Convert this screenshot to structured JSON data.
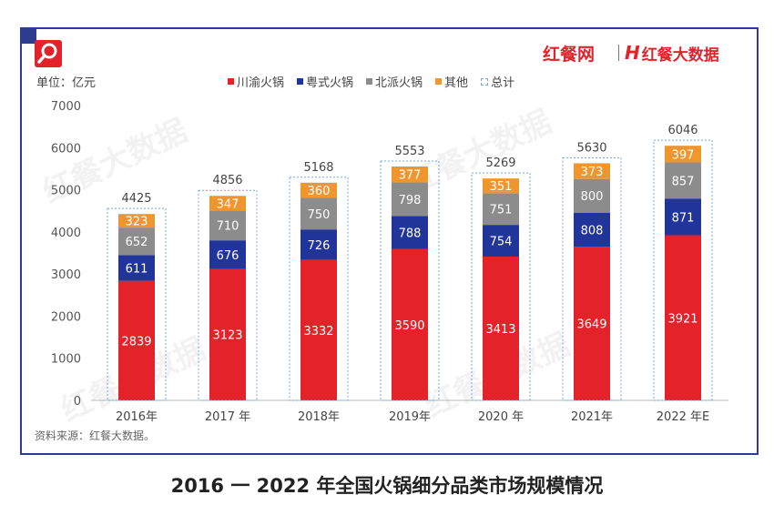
{
  "brand": {
    "primary": "红餐网",
    "secondary": "红餐大数据",
    "secondary_mark": "H"
  },
  "unit_label": "单位：亿元",
  "source": "资料来源：红餐大数据。",
  "caption": "2016 一 2022 年全国火锅细分品类市场规模情况",
  "watermark": "红餐大数据",
  "colors": {
    "frame": "#2e3c8f",
    "chuanyu": "#e3222a",
    "yueshi": "#21349a",
    "beipai": "#8c8c8c",
    "other": "#f0962e",
    "total_outline": "#6fa8dc"
  },
  "chart_data": {
    "type": "bar",
    "stacked": true,
    "categories": [
      "2016年",
      "2017 年",
      "2018年",
      "2019年",
      "2020 年",
      "2021年",
      "2022 年E"
    ],
    "series": [
      {
        "name": "川渝火锅",
        "color": "#e3222a",
        "values": [
          2839,
          3123,
          3332,
          3590,
          3413,
          3649,
          3921
        ]
      },
      {
        "name": "粤式火锅",
        "color": "#21349a",
        "values": [
          611,
          676,
          726,
          788,
          754,
          808,
          871
        ]
      },
      {
        "name": "北派火锅",
        "color": "#8c8c8c",
        "values": [
          652,
          710,
          750,
          798,
          751,
          800,
          857
        ]
      },
      {
        "name": "其他",
        "color": "#f0962e",
        "values": [
          323,
          347,
          360,
          377,
          351,
          373,
          397
        ]
      }
    ],
    "totals": {
      "name": "总计",
      "values": [
        4425,
        4856,
        5168,
        5553,
        5269,
        5630,
        6046
      ]
    },
    "yticks": [
      0,
      1000,
      2000,
      3000,
      4000,
      5000,
      6000,
      7000
    ],
    "ylim": [
      0,
      7000
    ],
    "legend_position": "top",
    "grid": false
  }
}
